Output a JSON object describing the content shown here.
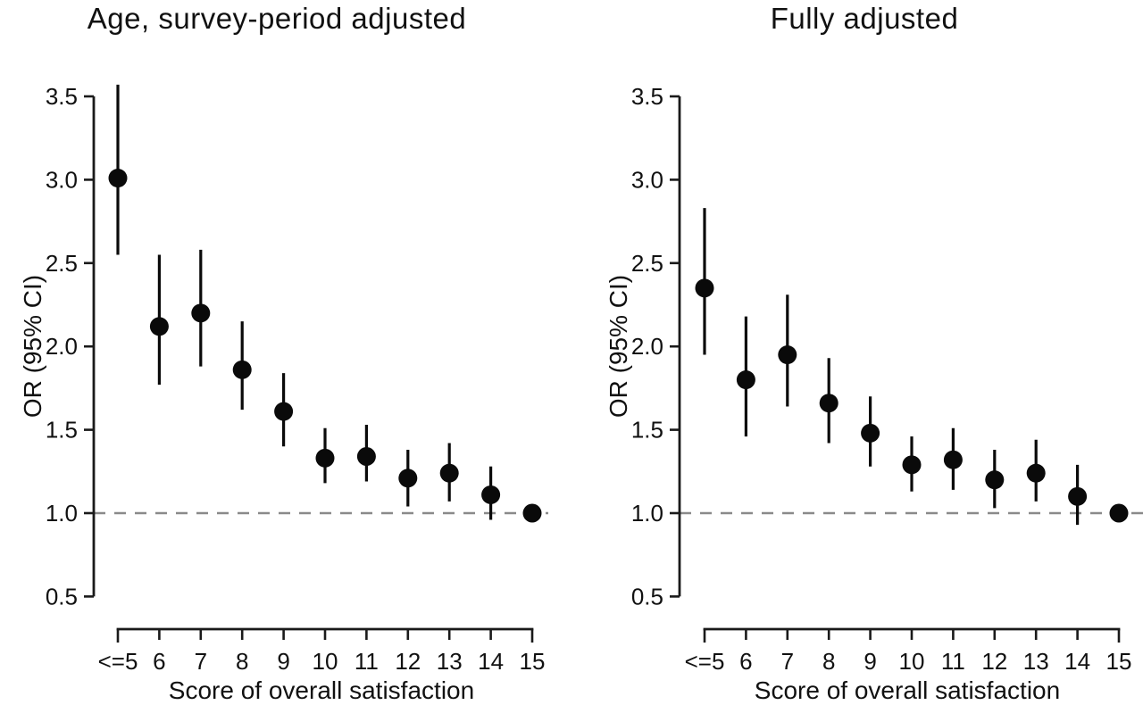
{
  "figure": {
    "background": "#ffffff",
    "point_color": "#0a0a0a",
    "axis_color": "#1a1a1a",
    "reference_line_color": "#8a8a8a"
  },
  "chart_data": [
    {
      "type": "scatter",
      "title": "Age, survey-period adjusted",
      "xlabel": "Score of overall satisfaction",
      "ylabel": "OR (95% CI)",
      "categories": [
        "<=5",
        "6",
        "7",
        "8",
        "9",
        "10",
        "11",
        "12",
        "13",
        "14",
        "15"
      ],
      "series": [
        {
          "name": "OR",
          "values": [
            3.01,
            2.12,
            2.2,
            1.86,
            1.61,
            1.33,
            1.34,
            1.21,
            1.24,
            1.11,
            1.0
          ]
        }
      ],
      "ci_low": [
        2.55,
        1.77,
        1.88,
        1.62,
        1.4,
        1.18,
        1.19,
        1.04,
        1.07,
        0.96,
        1.0
      ],
      "ci_high": [
        3.57,
        2.55,
        2.58,
        2.15,
        1.84,
        1.51,
        1.53,
        1.38,
        1.42,
        1.28,
        1.0
      ],
      "ylim": [
        0.5,
        3.5
      ],
      "yticks": [
        0.5,
        1.0,
        1.5,
        2.0,
        2.5,
        3.0,
        3.5
      ],
      "ytick_labels": [
        "0.5",
        "1.0",
        "1.5",
        "2.0",
        "2.5",
        "3.0",
        "3.5"
      ],
      "reference_line": 1.0,
      "grid": "off",
      "legend": "none"
    },
    {
      "type": "scatter",
      "title": "Fully adjusted",
      "xlabel": "Score of overall satisfaction",
      "ylabel": "OR (95% CI)",
      "categories": [
        "<=5",
        "6",
        "7",
        "8",
        "9",
        "10",
        "11",
        "12",
        "13",
        "14",
        "15"
      ],
      "series": [
        {
          "name": "OR",
          "values": [
            2.35,
            1.8,
            1.95,
            1.66,
            1.48,
            1.29,
            1.32,
            1.2,
            1.24,
            1.1,
            1.0
          ]
        }
      ],
      "ci_low": [
        1.95,
        1.46,
        1.64,
        1.42,
        1.28,
        1.13,
        1.14,
        1.03,
        1.07,
        0.93,
        1.0
      ],
      "ci_high": [
        2.83,
        2.18,
        2.31,
        1.93,
        1.7,
        1.46,
        1.51,
        1.38,
        1.44,
        1.29,
        1.0
      ],
      "ylim": [
        0.5,
        3.5
      ],
      "yticks": [
        0.5,
        1.0,
        1.5,
        2.0,
        2.5,
        3.0,
        3.5
      ],
      "ytick_labels": [
        "0.5",
        "1.0",
        "1.5",
        "2.0",
        "2.5",
        "3.0",
        "3.5"
      ],
      "reference_line": 1.0,
      "grid": "off",
      "legend": "none"
    }
  ]
}
